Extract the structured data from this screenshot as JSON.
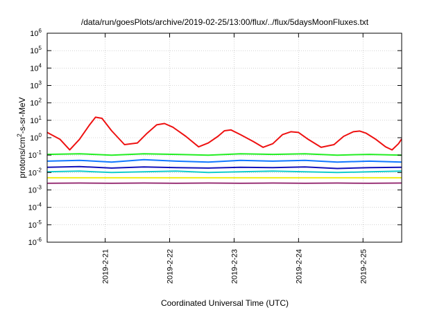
{
  "chart_data": {
    "type": "line",
    "title": "/data/run/goesPlots/archive/2019-02-25/13:00/flux/../flux/5daysMoonFluxes.txt",
    "xlabel": "Coordinated Universal Time (UTC)",
    "ylabel": "protons/cm2-s-sr-MeV",
    "ylabel_parts": {
      "before": "protons/cm",
      "sup": "2",
      "after": "-s-sr-MeV"
    },
    "yscale": "log",
    "ylim": [
      1e-06,
      1000000.0
    ],
    "xlim": [
      20.1,
      25.6
    ],
    "x_unit": "day of February 2019",
    "x_ticks": [
      {
        "value": 21,
        "label": "2019-2-21"
      },
      {
        "value": 22,
        "label": "2019-2-22"
      },
      {
        "value": 23,
        "label": "2019-2-23"
      },
      {
        "value": 24,
        "label": "2019-2-24"
      },
      {
        "value": 25,
        "label": "2019-2-25"
      }
    ],
    "y_ticks": [
      {
        "value": 1000000.0,
        "base": "10",
        "exp": "6"
      },
      {
        "value": 100000.0,
        "base": "10",
        "exp": "5"
      },
      {
        "value": 10000.0,
        "base": "10",
        "exp": "4"
      },
      {
        "value": 1000.0,
        "base": "10",
        "exp": "3"
      },
      {
        "value": 100.0,
        "base": "10",
        "exp": "2"
      },
      {
        "value": 10.0,
        "base": "10",
        "exp": "1"
      },
      {
        "value": 1.0,
        "base": "10",
        "exp": "0"
      },
      {
        "value": 0.1,
        "base": "10",
        "exp": "-1"
      },
      {
        "value": 0.01,
        "base": "10",
        "exp": "-2"
      },
      {
        "value": 0.001,
        "base": "10",
        "exp": "-3"
      },
      {
        "value": 0.0001,
        "base": "10",
        "exp": "-4"
      },
      {
        "value": 1e-05,
        "base": "10",
        "exp": "-5"
      },
      {
        "value": 1e-06,
        "base": "10",
        "exp": "-6"
      }
    ],
    "grid": true,
    "legend": "none",
    "series": [
      {
        "color": "#ee1111",
        "x": [
          20.1,
          20.3,
          20.45,
          20.6,
          20.75,
          20.85,
          20.95,
          21.1,
          21.3,
          21.5,
          21.65,
          21.8,
          21.92,
          22.05,
          22.25,
          22.45,
          22.6,
          22.75,
          22.85,
          22.95,
          23.1,
          23.3,
          23.45,
          23.6,
          23.75,
          23.88,
          24.0,
          24.15,
          24.35,
          24.55,
          24.7,
          24.85,
          24.95,
          25.05,
          25.2,
          25.35,
          25.45,
          25.55,
          25.6
        ],
        "y": [
          2.0,
          0.8,
          0.2,
          0.8,
          5,
          15,
          13,
          2.5,
          0.4,
          0.5,
          1.8,
          5.5,
          6.5,
          4,
          1.2,
          0.3,
          0.5,
          1.2,
          2.5,
          2.8,
          1.5,
          0.6,
          0.28,
          0.45,
          1.5,
          2.2,
          2.0,
          0.8,
          0.28,
          0.4,
          1.2,
          2.2,
          2.4,
          1.8,
          0.8,
          0.3,
          0.2,
          0.45,
          0.85
        ]
      },
      {
        "color": "#22ee22",
        "x": [
          20.1,
          20.6,
          21.1,
          21.6,
          22.1,
          22.6,
          23.1,
          23.6,
          24.1,
          24.6,
          25.1,
          25.6
        ],
        "y": [
          0.11,
          0.12,
          0.1,
          0.12,
          0.11,
          0.1,
          0.12,
          0.11,
          0.12,
          0.1,
          0.11,
          0.1
        ]
      },
      {
        "color": "#1177ff",
        "x": [
          20.1,
          20.6,
          21.1,
          21.6,
          22.1,
          22.6,
          23.1,
          23.6,
          24.1,
          24.6,
          25.1,
          25.6
        ],
        "y": [
          0.045,
          0.05,
          0.04,
          0.055,
          0.045,
          0.04,
          0.05,
          0.045,
          0.05,
          0.04,
          0.045,
          0.04
        ]
      },
      {
        "color": "#1111bb",
        "x": [
          20.1,
          20.6,
          21.1,
          21.6,
          22.1,
          22.6,
          23.1,
          23.6,
          24.1,
          24.6,
          25.1,
          25.6
        ],
        "y": [
          0.02,
          0.022,
          0.018,
          0.021,
          0.019,
          0.018,
          0.02,
          0.019,
          0.021,
          0.017,
          0.019,
          0.02
        ]
      },
      {
        "color": "#11cccc",
        "x": [
          20.1,
          20.6,
          21.1,
          21.6,
          22.1,
          22.6,
          23.1,
          23.6,
          24.1,
          24.6,
          25.1,
          25.6
        ],
        "y": [
          0.011,
          0.012,
          0.01,
          0.011,
          0.012,
          0.01,
          0.011,
          0.012,
          0.011,
          0.01,
          0.011,
          0.012
        ]
      },
      {
        "color": "#eeee11",
        "x": [
          20.1,
          20.6,
          21.1,
          21.6,
          22.1,
          22.6,
          23.1,
          23.6,
          24.1,
          24.6,
          25.1,
          25.6
        ],
        "y": [
          0.005,
          0.005,
          0.005,
          0.005,
          0.005,
          0.005,
          0.005,
          0.005,
          0.005,
          0.005,
          0.005,
          0.005
        ]
      },
      {
        "color": "#993377",
        "x": [
          20.1,
          20.6,
          21.1,
          21.6,
          22.1,
          22.6,
          23.1,
          23.6,
          24.1,
          24.6,
          25.1,
          25.6
        ],
        "y": [
          0.0024,
          0.0025,
          0.0024,
          0.0025,
          0.0024,
          0.0025,
          0.0024,
          0.0025,
          0.0024,
          0.0025,
          0.0024,
          0.0025
        ]
      }
    ]
  }
}
